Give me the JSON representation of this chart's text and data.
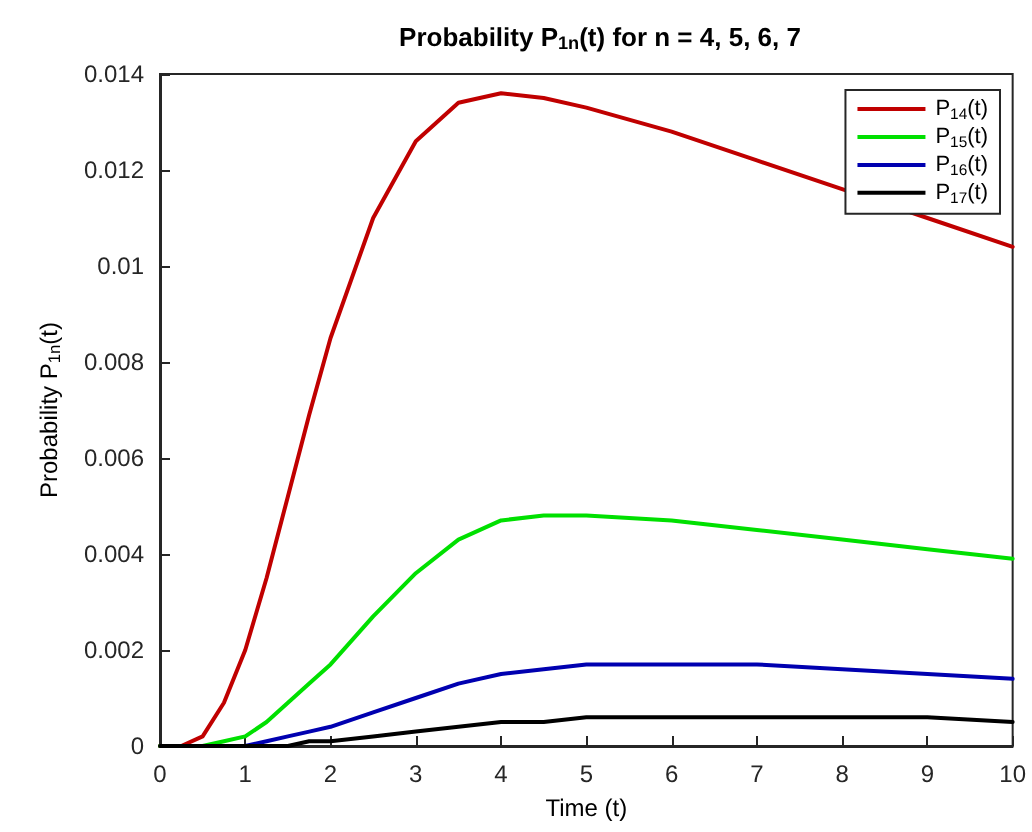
{
  "chart_data": {
    "type": "line",
    "title": "Probability P$_{1n}$(t) for n = 4, 5, 6, 7",
    "xlabel": "Time (t)",
    "ylabel": "Probability P$_{1n}$(t)",
    "x": [
      0,
      0.25,
      0.5,
      0.75,
      1,
      1.25,
      1.5,
      1.75,
      2,
      2.5,
      3,
      3.5,
      4,
      4.5,
      5,
      6,
      7,
      8,
      9,
      10
    ],
    "series": [
      {
        "name": "P$_{14}$(t)",
        "color": "#c00000",
        "values": [
          0,
          0,
          0.0002,
          0.0009,
          0.002,
          0.0035,
          0.0052,
          0.0069,
          0.0085,
          0.011,
          0.0126,
          0.0134,
          0.0136,
          0.0135,
          0.0133,
          0.0128,
          0.0122,
          0.0116,
          0.011,
          0.0104
        ]
      },
      {
        "name": "P$_{15}$(t)",
        "color": "#00e000",
        "values": [
          0,
          0,
          0,
          0.0001,
          0.0002,
          0.0005,
          0.0009,
          0.0013,
          0.0017,
          0.0027,
          0.0036,
          0.0043,
          0.0047,
          0.0048,
          0.0048,
          0.0047,
          0.0045,
          0.0043,
          0.0041,
          0.0039
        ]
      },
      {
        "name": "P$_{16}$(t)",
        "color": "#0000b0",
        "values": [
          null,
          null,
          null,
          0,
          0,
          0.0001,
          0.0002,
          0.0003,
          0.0004,
          0.0007,
          0.001,
          0.0013,
          0.0015,
          0.0016,
          0.0017,
          0.0017,
          0.0017,
          0.0016,
          0.0015,
          0.0014
        ]
      },
      {
        "name": "P$_{17}$(t)",
        "color": "#000000",
        "values": [
          0,
          0,
          0,
          0,
          0,
          0,
          0,
          0.0001,
          0.0001,
          0.0002,
          0.0003,
          0.0004,
          0.0005,
          0.0005,
          0.0006,
          0.0006,
          0.0006,
          0.0006,
          0.0006,
          0.0005
        ]
      }
    ],
    "xlim": [
      0,
      10
    ],
    "xticks": [
      0,
      1,
      2,
      3,
      4,
      5,
      6,
      7,
      8,
      9,
      10
    ],
    "ylim": [
      0,
      0.014
    ],
    "yticks": [
      0,
      0.002,
      0.004,
      0.006,
      0.008,
      0.01,
      0.012,
      0.014
    ],
    "grid": false,
    "legend": "top right",
    "marker": "none",
    "line_style": "solid"
  }
}
